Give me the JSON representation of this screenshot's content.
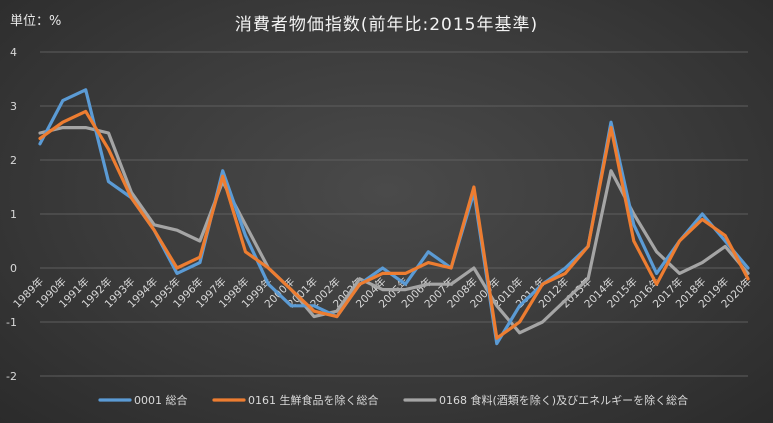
{
  "unit_label": "単位：%",
  "chart_data": {
    "type": "line",
    "title": "消費者物価指数(前年比:2015年基準)",
    "xlabel": "",
    "ylabel": "",
    "ylim": [
      -2,
      4
    ],
    "yticks": [
      4,
      3,
      2,
      1,
      0,
      -1,
      -2
    ],
    "grid": true,
    "legend": "bottom",
    "categories": [
      "1989年",
      "1990年",
      "1991年",
      "1992年",
      "1993年",
      "1994年",
      "1995年",
      "1996年",
      "1997年",
      "1998年",
      "1999年",
      "2000年",
      "2001年",
      "2002年",
      "2003年",
      "2004年",
      "2005年",
      "2006年",
      "2007年",
      "2008年",
      "2009年",
      "2010年",
      "2011年",
      "2012年",
      "2013年",
      "2014年",
      "2015年",
      "2016年",
      "2017年",
      "2018年",
      "2019年",
      "2020年"
    ],
    "series": [
      {
        "name": "0001 総合",
        "color": "#5b9bd5",
        "values": [
          2.3,
          3.1,
          3.3,
          1.6,
          1.3,
          0.7,
          -0.1,
          0.1,
          1.8,
          0.6,
          -0.3,
          -0.7,
          -0.7,
          -0.9,
          -0.3,
          0.0,
          -0.3,
          0.3,
          0.0,
          1.4,
          -1.4,
          -0.7,
          -0.3,
          0.0,
          0.4,
          2.7,
          0.8,
          -0.1,
          0.5,
          1.0,
          0.5,
          0.0
        ]
      },
      {
        "name": "0161 生鮮食品を除く総合",
        "color": "#ed7d31",
        "values": [
          2.4,
          2.7,
          2.9,
          2.2,
          1.3,
          0.7,
          0.0,
          0.2,
          1.7,
          0.3,
          0.0,
          -0.4,
          -0.8,
          -0.9,
          -0.3,
          -0.1,
          -0.1,
          0.1,
          0.0,
          1.5,
          -1.3,
          -1.0,
          -0.3,
          -0.1,
          0.4,
          2.6,
          0.5,
          -0.3,
          0.5,
          0.9,
          0.6,
          -0.2
        ]
      },
      {
        "name": "0168 食料(酒類を除く)及びエネルギーを除く総合",
        "color": "#a5a5a5",
        "values": [
          2.5,
          2.6,
          2.6,
          2.5,
          1.4,
          0.8,
          0.7,
          0.5,
          1.6,
          0.8,
          0.0,
          -0.4,
          -0.9,
          -0.8,
          -0.2,
          -0.4,
          -0.4,
          -0.3,
          -0.3,
          0.0,
          -0.7,
          -1.2,
          -1.0,
          -0.6,
          -0.2,
          1.8,
          1.0,
          0.3,
          -0.1,
          0.1,
          0.4,
          -0.1
        ]
      }
    ]
  }
}
